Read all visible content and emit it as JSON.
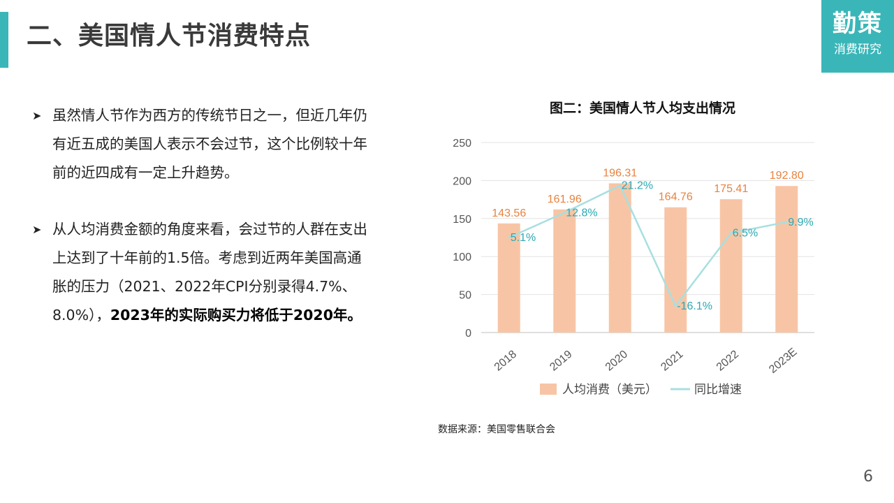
{
  "header": {
    "title": "二、美国情人节消费特点",
    "logo_main": "勤策",
    "logo_sub": "消费研究"
  },
  "bullets": [
    {
      "text": "虽然情人节作为西方的传统节日之一，但近几年仍有近五成的美国人表示不会过节，这个比例较十年前的近四成有一定上升趋势。",
      "bold": ""
    },
    {
      "text": "从人均消费金额的角度来看，会过节的人群在支出上达到了十年前的1.5倍。考虑到近两年美国高通胀的压力（2021、2022年CPI分别录得4.7%、8.0%），",
      "bold": "2023年的实际购买力将低于2020年。"
    }
  ],
  "chart_data": {
    "type": "bar",
    "title": "图二：美国情人节人均支出情况",
    "categories": [
      "2018",
      "2019",
      "2020",
      "2021",
      "2022",
      "2023E"
    ],
    "series": [
      {
        "name": "人均消费（美元）",
        "type": "bar",
        "values": [
          143.56,
          161.96,
          196.31,
          164.76,
          175.41,
          192.8
        ],
        "labels": [
          "143.56",
          "161.96",
          "196.31",
          "164.76",
          "175.41",
          "192.80"
        ]
      },
      {
        "name": "同比增速",
        "type": "line",
        "values": [
          5.1,
          12.8,
          21.2,
          -16.1,
          6.5,
          9.9
        ],
        "labels": [
          "5.1%",
          "12.8%",
          "21.2%",
          "-16.1%",
          "6.5%",
          "9.9%"
        ]
      }
    ],
    "y_ticks": [
      "250",
      "200",
      "150",
      "100",
      "50",
      "0"
    ],
    "ylim": [
      0,
      250
    ],
    "legend_position": "bottom",
    "colors": {
      "bar": "#f7c5a5",
      "bar_label": "#e8823e",
      "line": "#a8dfe0",
      "line_label": "#2aa8b3"
    }
  },
  "footer": {
    "source": "数据来源：美国零售联合会",
    "page_number": "6"
  }
}
